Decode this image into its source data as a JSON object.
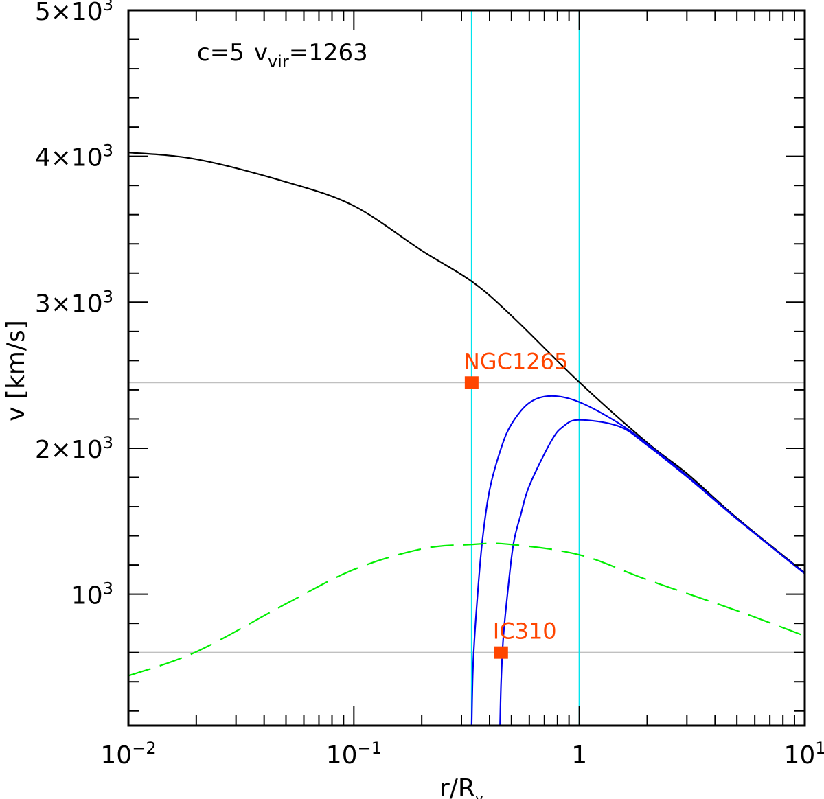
{
  "chart_data": {
    "type": "line",
    "xscale": "log",
    "xlim": [
      0.01,
      10
    ],
    "ylim": [
      100,
      5000
    ],
    "xlabel": "r/R",
    "xlabel_sub": "v",
    "ylabel": "v [km/s]",
    "x_ticks": [
      {
        "value": 0.01,
        "base": "10",
        "exp": "−2"
      },
      {
        "value": 0.1,
        "base": "10",
        "exp": "−1"
      },
      {
        "value": 1,
        "base": "1",
        "exp": ""
      },
      {
        "value": 10,
        "base": "10",
        "exp": "1"
      }
    ],
    "y_ticks": [
      {
        "value": 5000,
        "base": "5×10",
        "exp": "3"
      },
      {
        "value": 4000,
        "base": "4×10",
        "exp": "3"
      },
      {
        "value": 3000,
        "base": "3×10",
        "exp": "3"
      },
      {
        "value": 2000,
        "base": "2×10",
        "exp": "3"
      },
      {
        "value": 1000,
        "base": "10",
        "exp": "3"
      }
    ],
    "annotation": {
      "c_text": "c=5",
      "v": "v",
      "sub": "vir",
      "value_text": "=1263"
    },
    "series": [
      {
        "color": "#000000",
        "dash": false,
        "points": [
          [
            0.01,
            4026
          ],
          [
            0.02,
            3980
          ],
          [
            0.05,
            3824
          ],
          [
            0.1,
            3660
          ],
          [
            0.2,
            3354
          ],
          [
            0.333,
            3143
          ],
          [
            0.5,
            2908
          ],
          [
            1,
            2452
          ],
          [
            2,
            2038
          ],
          [
            3,
            1827
          ],
          [
            5,
            1522
          ],
          [
            10,
            1146
          ]
        ]
      },
      {
        "color": "#0000ee",
        "dash": false,
        "points": [
          [
            0.333,
            100
          ],
          [
            0.336,
            400
          ],
          [
            0.34,
            600
          ],
          [
            0.35,
            900
          ],
          [
            0.37,
            1343
          ],
          [
            0.4,
            1714
          ],
          [
            0.45,
            2000
          ],
          [
            0.5,
            2165
          ],
          [
            0.6,
            2311
          ],
          [
            0.75,
            2358
          ],
          [
            1,
            2316
          ],
          [
            1.5,
            2170
          ],
          [
            2,
            2030
          ],
          [
            3,
            1812
          ],
          [
            5,
            1517
          ],
          [
            10,
            1142
          ]
        ]
      },
      {
        "color": "#0000ee",
        "dash": false,
        "points": [
          [
            0.445,
            100
          ],
          [
            0.45,
            400
          ],
          [
            0.46,
            700
          ],
          [
            0.48,
            1000
          ],
          [
            0.51,
            1343
          ],
          [
            0.55,
            1545
          ],
          [
            0.6,
            1742
          ],
          [
            0.75,
            2048
          ],
          [
            0.85,
            2150
          ],
          [
            1,
            2194
          ],
          [
            1.5,
            2150
          ],
          [
            2,
            2020
          ],
          [
            3,
            1805
          ],
          [
            5,
            1515
          ],
          [
            10,
            1140
          ]
        ]
      },
      {
        "color": "#00ee00",
        "dash": true,
        "points": [
          [
            0.01,
            441
          ],
          [
            0.02,
            605
          ],
          [
            0.05,
            934
          ],
          [
            0.1,
            1169
          ],
          [
            0.2,
            1310
          ],
          [
            0.33,
            1340
          ],
          [
            0.48,
            1343
          ],
          [
            1,
            1270
          ],
          [
            2,
            1099
          ],
          [
            5,
            887
          ],
          [
            10,
            714
          ]
        ]
      }
    ],
    "hlines": [
      {
        "y": 2450,
        "color": "#c0c0c0"
      },
      {
        "y": 600,
        "color": "#c0c0c0"
      }
    ],
    "vlines": [
      {
        "x": 0.333,
        "color": "#00e5ee"
      },
      {
        "x": 1,
        "color": "#00e5ee"
      }
    ],
    "points": [
      {
        "label": "NGC1265",
        "x": 0.333,
        "y": 2450,
        "color": "#ff4500"
      },
      {
        "label": "IC310",
        "x": 0.45,
        "y": 600,
        "color": "#ff4500"
      }
    ],
    "grid": false
  }
}
